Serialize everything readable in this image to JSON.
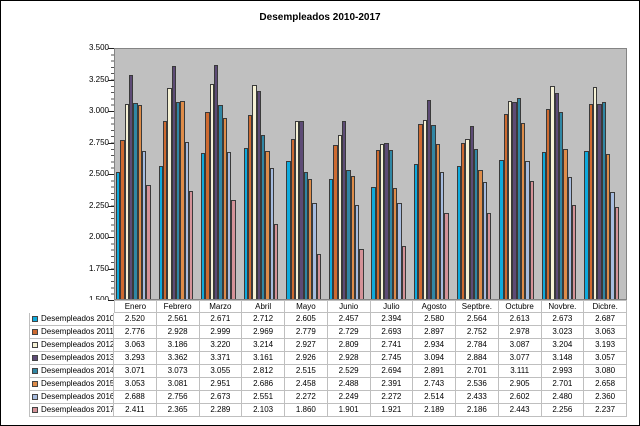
{
  "title": "Desempleados 2010-2017",
  "chart_data": {
    "type": "bar",
    "title": "Desempleados 2010-2017",
    "categories": [
      "Enero",
      "Febrero",
      "Marzo",
      "Abril",
      "Mayo",
      "Junio",
      "Julio",
      "Agosto",
      "Septbre.",
      "Octubre",
      "Novbre.",
      "Dicbre."
    ],
    "series": [
      {
        "name": "Desempleados 2010",
        "color": "#0FAADC",
        "values": [
          2520,
          2561,
          2671,
          2712,
          2605,
          2457,
          2394,
          2580,
          2564,
          2613,
          2673,
          2687
        ]
      },
      {
        "name": "Desempleados 2011",
        "color": "#CE6A30",
        "values": [
          2776,
          2928,
          2999,
          2969,
          2779,
          2729,
          2693,
          2897,
          2752,
          2978,
          3023,
          3063
        ]
      },
      {
        "name": "Desempleados 2012",
        "color": "#F5F1D4",
        "values": [
          3063,
          3186,
          3220,
          3214,
          2927,
          2809,
          2741,
          2934,
          2784,
          3087,
          3204,
          3193
        ]
      },
      {
        "name": "Desempleados 2013",
        "color": "#5D4B76",
        "values": [
          3293,
          3362,
          3371,
          3161,
          2926,
          2928,
          2745,
          3094,
          2884,
          3077,
          3148,
          3057
        ]
      },
      {
        "name": "Desempleados 2014",
        "color": "#3187A4",
        "values": [
          3071,
          3073,
          3055,
          2812,
          2515,
          2529,
          2694,
          2891,
          2701,
          3111,
          2993,
          3080
        ]
      },
      {
        "name": "Desempleados 2015",
        "color": "#DE8C49",
        "values": [
          3053,
          3081,
          2951,
          2686,
          2458,
          2488,
          2391,
          2743,
          2536,
          2905,
          2701,
          2658
        ]
      },
      {
        "name": "Desempleados 2016",
        "color": "#A7BCDF",
        "values": [
          2688,
          2756,
          2673,
          2551,
          2272,
          2249,
          2272,
          2514,
          2433,
          2602,
          2480,
          2360
        ]
      },
      {
        "name": "Desempleados 2017",
        "color": "#D49298",
        "values": [
          2411,
          2365,
          2289,
          2103,
          1860,
          1901,
          1921,
          2189,
          2186,
          2443,
          2256,
          2237
        ]
      }
    ],
    "ylim": [
      1500,
      3500
    ],
    "ytick_step": 250,
    "ytick_labels": [
      "3.500",
      "3.250",
      "3.000",
      "2.750",
      "2.500",
      "2.250",
      "2.000",
      "1.750",
      "1.500"
    ],
    "number_format": "thousands-dot",
    "grid": false,
    "plot_bg": "#C0C0C0",
    "legend_position": "data-table-left"
  }
}
